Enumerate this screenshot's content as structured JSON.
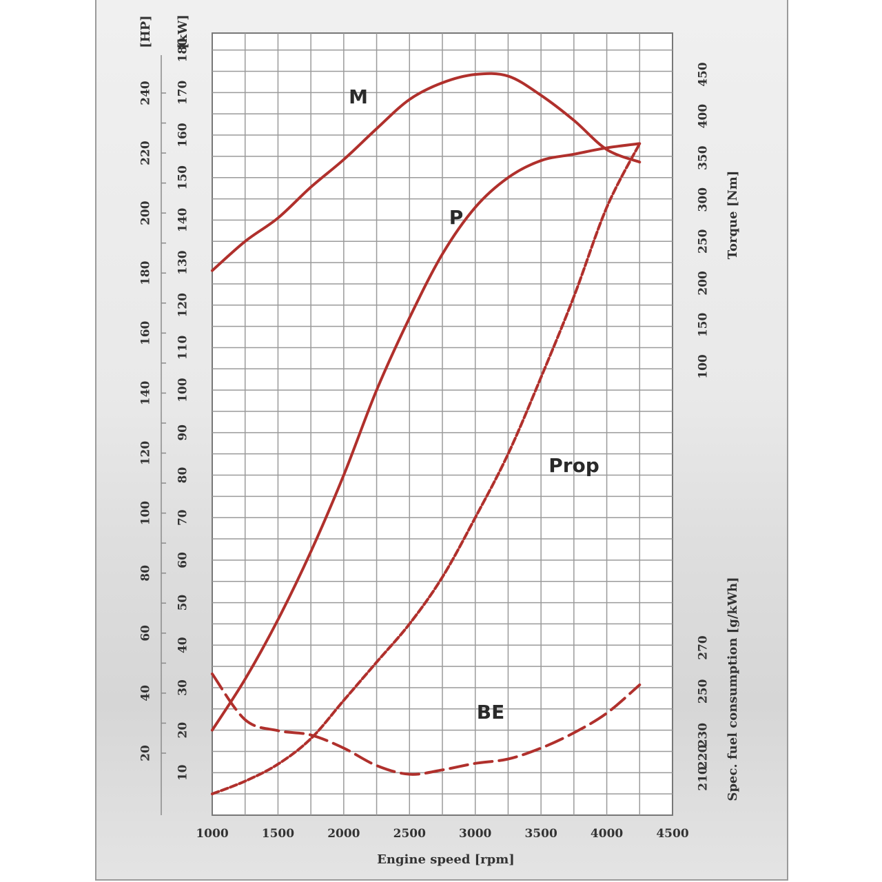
{
  "chart_data": {
    "type": "line",
    "xlabel": "Engine speed [rpm]",
    "xlim": [
      1000,
      4500
    ],
    "x_ticks": [
      1000,
      1500,
      2000,
      2500,
      3000,
      3500,
      4000,
      4500
    ],
    "left_axes": [
      {
        "label": "[HP]",
        "ticks": [
          20,
          40,
          60,
          80,
          100,
          120,
          140,
          160,
          180,
          200,
          220,
          240
        ]
      },
      {
        "label": "[kW]",
        "ticks": [
          10,
          20,
          30,
          40,
          50,
          60,
          70,
          80,
          90,
          100,
          110,
          120,
          130,
          140,
          150,
          160,
          170,
          180
        ]
      }
    ],
    "right_axes": [
      {
        "label": "Torque [Nm]",
        "ticks": [
          100,
          150,
          200,
          250,
          300,
          350,
          400,
          450
        ]
      },
      {
        "label": "Spec. fuel consumption [g/kWh]",
        "ticks": [
          210,
          220,
          230,
          250,
          270
        ]
      }
    ],
    "series": [
      {
        "name": "M",
        "unit_axis": "Torque [Nm]",
        "style": "solid",
        "x": [
          1000,
          1250,
          1500,
          1750,
          2000,
          2250,
          2500,
          2750,
          3000,
          3250,
          3500,
          3750,
          4000,
          4250
        ],
        "y": [
          215,
          250,
          278,
          315,
          348,
          385,
          420,
          440,
          450,
          448,
          425,
          395,
          360,
          345
        ]
      },
      {
        "name": "P",
        "unit_axis": "[kW]",
        "style": "solid",
        "x": [
          1000,
          1250,
          1500,
          1750,
          2000,
          2250,
          2500,
          2750,
          3000,
          3250,
          3500,
          3750,
          4000,
          4250
        ],
        "y": [
          20,
          32,
          46,
          62,
          80,
          100,
          117,
          132,
          143,
          150,
          154,
          155.5,
          157,
          158
        ]
      },
      {
        "name": "Prop",
        "unit_axis": "[kW]",
        "style": "dashed",
        "x": [
          1000,
          1250,
          1500,
          1750,
          2000,
          2250,
          2500,
          2750,
          3000,
          3250,
          3500,
          3750,
          4000,
          4250
        ],
        "y": [
          5,
          8,
          12,
          18,
          27,
          36,
          45,
          56,
          70,
          85,
          103,
          122,
          143,
          158
        ]
      },
      {
        "name": "BE",
        "unit_axis": "Spec. fuel consumption [g/kWh]",
        "style": "dashed",
        "x": [
          1000,
          1250,
          1500,
          1750,
          2000,
          2250,
          2500,
          2750,
          3000,
          3250,
          3500,
          3750,
          4000,
          4250
        ],
        "y": [
          258,
          237,
          232,
          230,
          224,
          216,
          212,
          214,
          217,
          219,
          224,
          231,
          240,
          253
        ]
      }
    ],
    "grid": true
  }
}
